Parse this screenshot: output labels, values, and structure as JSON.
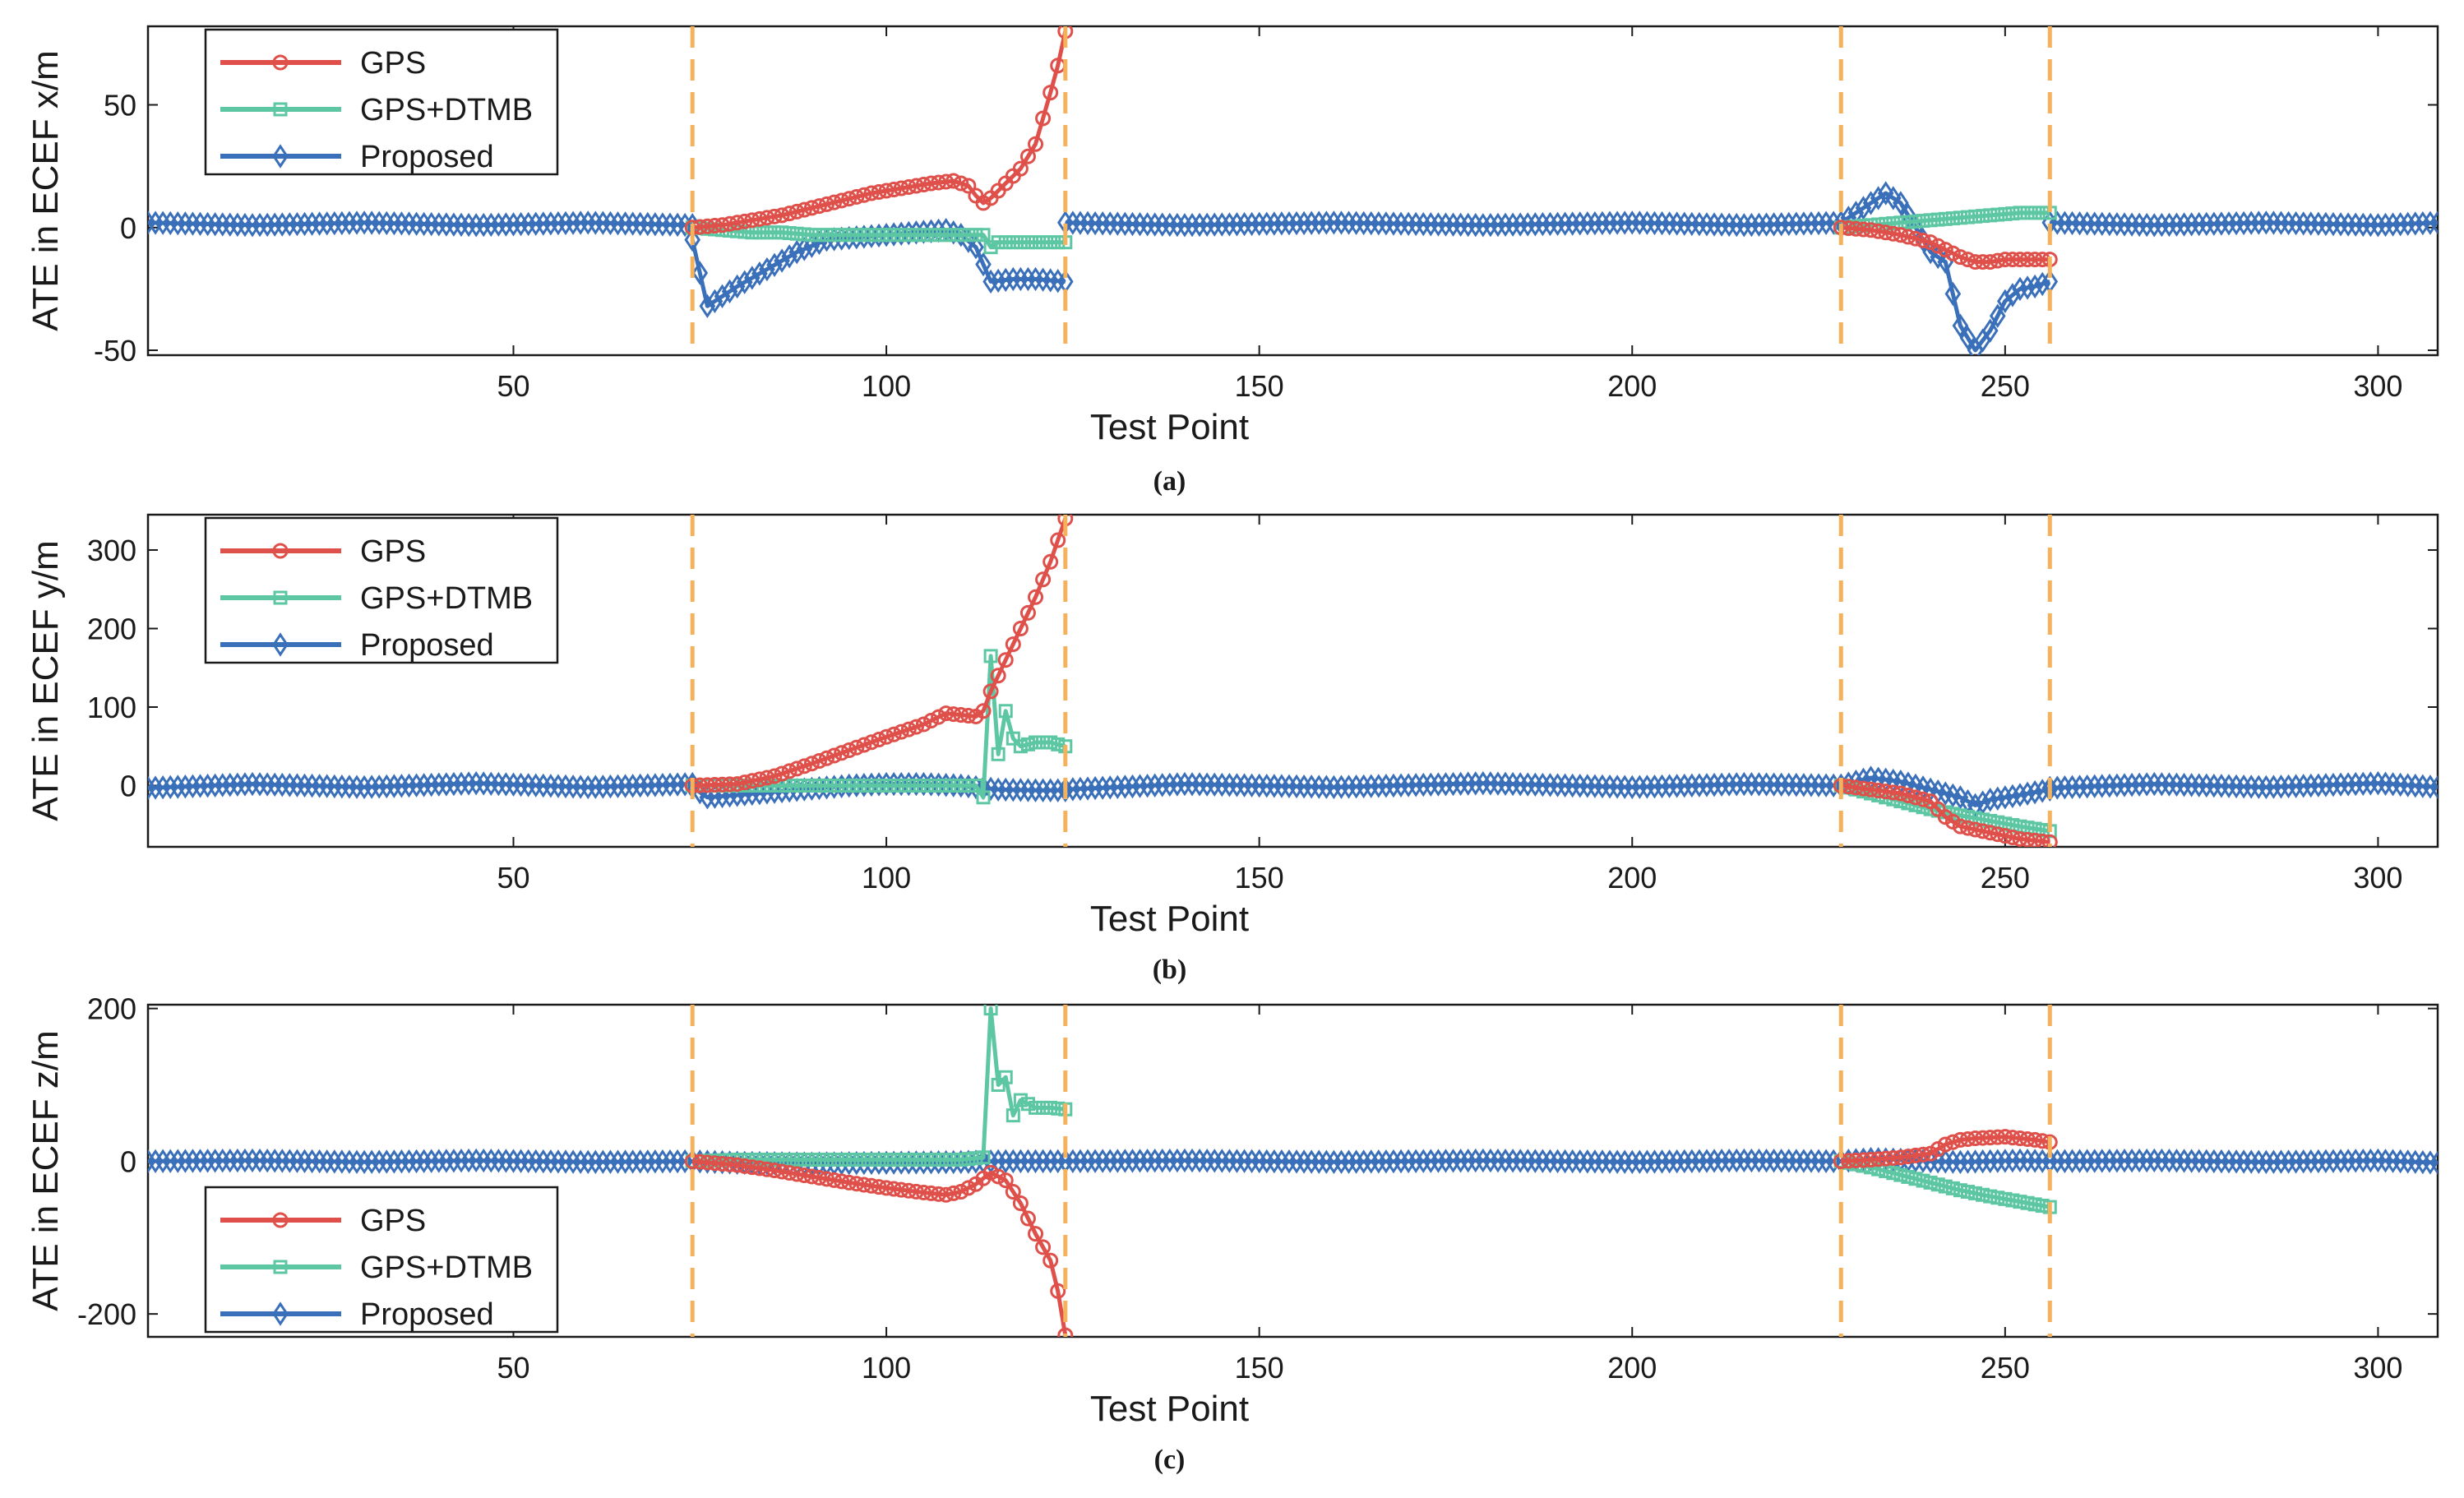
{
  "colors": {
    "gps": "#e0504a",
    "gps_dtmb": "#5cc7a2",
    "proposed": "#3a6fba",
    "outage": "#f5b25c",
    "axis": "#1a1a1a"
  },
  "chart_data": [
    {
      "type": "line",
      "caption": "(a)",
      "xlabel": "Test Point",
      "ylabel": "ATE in ECEF x/m",
      "xlim": [
        1,
        308
      ],
      "ylim": [
        -52,
        82
      ],
      "xticks": [
        50,
        100,
        150,
        200,
        250,
        300
      ],
      "yticks": [
        -50,
        0,
        50
      ],
      "legend": {
        "position": "top-left",
        "entries": [
          "GPS",
          "GPS+DTMB",
          "Proposed"
        ]
      },
      "outages": [
        74,
        124,
        228,
        256
      ],
      "series": [
        {
          "name": "GPS",
          "key": "gps",
          "marker": "circle",
          "segments": [
            {
              "x": [
                74,
                78,
                82,
                86,
                90,
                94,
                98,
                102,
                106,
                109,
                111,
                112,
                113,
                114,
                116,
                118,
                120,
                122,
                123,
                124
              ],
              "y": [
                0,
                1,
                3,
                5,
                8,
                11,
                14,
                16,
                18,
                19,
                17,
                13,
                10,
                12,
                18,
                24,
                34,
                55,
                66,
                80
              ]
            },
            {
              "x": [
                228,
                232,
                236,
                240,
                242,
                244,
                246,
                248,
                250,
                252,
                254,
                256
              ],
              "y": [
                0,
                -1,
                -3,
                -6,
                -9,
                -12,
                -14,
                -14,
                -13,
                -13,
                -13,
                -13
              ]
            }
          ]
        },
        {
          "name": "GPS+DTMB",
          "key": "gps_dtmb",
          "marker": "square",
          "segments": [
            {
              "x": [
                74,
                78,
                82,
                86,
                90,
                94,
                98,
                102,
                106,
                110,
                113,
                114,
                115,
                117,
                120,
                124
              ],
              "y": [
                0,
                -1,
                -2,
                -2,
                -3,
                -3,
                -3,
                -3,
                -3,
                -3,
                -3,
                -8,
                -6,
                -6,
                -6,
                -6
              ]
            },
            {
              "x": [
                228,
                232,
                236,
                240,
                244,
                248,
                252,
                256
              ],
              "y": [
                0,
                1,
                2,
                3,
                4,
                5,
                6,
                6
              ]
            }
          ]
        },
        {
          "name": "Proposed",
          "key": "proposed",
          "marker": "diamond",
          "segments": [
            {
              "x": [
                1,
                15,
                30,
                45,
                60,
                74
              ],
              "y": [
                2,
                1,
                2,
                1,
                2,
                1
              ]
            },
            {
              "x": [
                74,
                76,
                80,
                84,
                88,
                92,
                96,
                100,
                104,
                108,
                110,
                112,
                114,
                117,
                120,
                124
              ],
              "y": [
                -5,
                -32,
                -24,
                -17,
                -10,
                -5,
                -4,
                -3,
                -2,
                -1,
                -3,
                -8,
                -22,
                -21,
                -21,
                -22
              ]
            },
            {
              "x": [
                124,
                140,
                160,
                180,
                200,
                215,
                228
              ],
              "y": [
                2,
                1,
                2,
                1,
                2,
                1,
                2
              ]
            },
            {
              "x": [
                228,
                231,
                234,
                236,
                238,
                240,
                242,
                244,
                246,
                248,
                250,
                252,
                254,
                256
              ],
              "y": [
                2,
                8,
                14,
                10,
                0,
                -10,
                -14,
                -40,
                -50,
                -42,
                -30,
                -25,
                -24,
                -22
              ]
            },
            {
              "x": [
                256,
                270,
                285,
                300,
                308
              ],
              "y": [
                2,
                1,
                2,
                1,
                2
              ]
            }
          ]
        }
      ]
    },
    {
      "type": "line",
      "caption": "(b)",
      "xlabel": "Test Point",
      "ylabel": "ATE in ECEF y/m",
      "xlim": [
        1,
        308
      ],
      "ylim": [
        -78,
        345
      ],
      "xticks": [
        50,
        100,
        150,
        200,
        250,
        300
      ],
      "yticks": [
        0,
        100,
        200,
        300
      ],
      "legend": {
        "position": "top-left",
        "entries": [
          "GPS",
          "GPS+DTMB",
          "Proposed"
        ]
      },
      "outages": [
        74,
        124,
        228,
        256
      ],
      "series": [
        {
          "name": "GPS",
          "key": "gps",
          "marker": "circle",
          "segments": [
            {
              "x": [
                74,
                80,
                85,
                90,
                95,
                100,
                105,
                108,
                110,
                112,
                113,
                114,
                116,
                118,
                120,
                122,
                124
              ],
              "y": [
                0,
                2,
                12,
                28,
                45,
                62,
                78,
                92,
                90,
                88,
                95,
                120,
                160,
                200,
                240,
                285,
                340
              ]
            },
            {
              "x": [
                228,
                232,
                236,
                240,
                242,
                244,
                246,
                248,
                250,
                252,
                254,
                256
              ],
              "y": [
                0,
                -5,
                -10,
                -20,
                -40,
                -52,
                -56,
                -60,
                -64,
                -68,
                -70,
                -72
              ]
            }
          ]
        },
        {
          "name": "GPS+DTMB",
          "key": "gps_dtmb",
          "marker": "square",
          "segments": [
            {
              "x": [
                74,
                80,
                90,
                100,
                110,
                112,
                113,
                114,
                115,
                116,
                117,
                118,
                120,
                122,
                124
              ],
              "y": [
                0,
                0,
                0,
                0,
                0,
                0,
                -15,
                165,
                40,
                95,
                60,
                50,
                55,
                55,
                50
              ]
            },
            {
              "x": [
                228,
                232,
                236,
                240,
                244,
                248,
                252,
                256
              ],
              "y": [
                0,
                -10,
                -20,
                -30,
                -38,
                -45,
                -52,
                -58
              ]
            }
          ]
        },
        {
          "name": "Proposed",
          "key": "proposed",
          "marker": "diamond",
          "segments": [
            {
              "x": [
                1,
                15,
                30,
                45,
                60,
                74
              ],
              "y": [
                -3,
                2,
                -2,
                3,
                -2,
                2
              ]
            },
            {
              "x": [
                74,
                76,
                80,
                85,
                90,
                95,
                100,
                105,
                110,
                115,
                120,
                124
              ],
              "y": [
                -2,
                -15,
                -12,
                -8,
                -4,
                0,
                2,
                2,
                0,
                -5,
                -6,
                -6
              ]
            },
            {
              "x": [
                124,
                140,
                160,
                180,
                200,
                215,
                228
              ],
              "y": [
                -5,
                2,
                -2,
                3,
                -2,
                2,
                0
              ]
            },
            {
              "x": [
                228,
                232,
                236,
                240,
                244,
                246,
                248,
                252,
                256
              ],
              "y": [
                0,
                10,
                5,
                -5,
                -15,
                -25,
                -18,
                -12,
                -5
              ]
            },
            {
              "x": [
                256,
                270,
                285,
                300,
                308
              ],
              "y": [
                -3,
                2,
                -2,
                3,
                -2
              ]
            }
          ]
        }
      ]
    },
    {
      "type": "line",
      "caption": "(c)",
      "xlabel": "Test Point",
      "ylabel": "ATE in ECEF z/m",
      "xlim": [
        1,
        308
      ],
      "ylim": [
        -230,
        205
      ],
      "xticks": [
        50,
        100,
        150,
        200,
        250,
        300
      ],
      "yticks": [
        -200,
        0,
        200
      ],
      "legend": {
        "position": "bottom-left",
        "entries": [
          "GPS",
          "GPS+DTMB",
          "Proposed"
        ]
      },
      "outages": [
        74,
        124,
        228,
        256
      ],
      "series": [
        {
          "name": "GPS",
          "key": "gps",
          "marker": "circle",
          "segments": [
            {
              "x": [
                74,
                80,
                85,
                90,
                95,
                100,
                105,
                108,
                110,
                112,
                114,
                116,
                118,
                120,
                122,
                123,
                124
              ],
              "y": [
                0,
                -5,
                -12,
                -20,
                -28,
                -35,
                -41,
                -44,
                -40,
                -30,
                -15,
                -25,
                -55,
                -95,
                -130,
                -170,
                -228
              ]
            },
            {
              "x": [
                228,
                232,
                236,
                240,
                242,
                244,
                246,
                248,
                250,
                252,
                254,
                256
              ],
              "y": [
                0,
                2,
                5,
                10,
                22,
                28,
                30,
                31,
                32,
                30,
                28,
                25
              ]
            }
          ]
        },
        {
          "name": "GPS+DTMB",
          "key": "gps_dtmb",
          "marker": "square",
          "segments": [
            {
              "x": [
                74,
                80,
                90,
                100,
                110,
                113,
                114,
                115,
                116,
                117,
                118,
                120,
                122,
                124
              ],
              "y": [
                0,
                2,
                2,
                2,
                2,
                5,
                200,
                100,
                110,
                60,
                80,
                70,
                70,
                68
              ]
            },
            {
              "x": [
                228,
                232,
                236,
                240,
                244,
                248,
                252,
                256
              ],
              "y": [
                0,
                -8,
                -18,
                -28,
                -38,
                -46,
                -53,
                -60
              ]
            }
          ]
        },
        {
          "name": "Proposed",
          "key": "proposed",
          "marker": "diamond",
          "segments": [
            {
              "x": [
                1,
                15,
                30,
                45,
                60,
                74
              ],
              "y": [
                0,
                1,
                -1,
                1,
                -1,
                0
              ]
            },
            {
              "x": [
                74,
                80,
                90,
                100,
                110,
                115,
                120,
                124
              ],
              "y": [
                0,
                -2,
                -3,
                -2,
                -1,
                0,
                0,
                0
              ]
            },
            {
              "x": [
                124,
                140,
                160,
                180,
                200,
                215,
                228
              ],
              "y": [
                0,
                1,
                -1,
                1,
                -1,
                1,
                0
              ]
            },
            {
              "x": [
                228,
                232,
                236,
                240,
                244,
                248,
                252,
                256
              ],
              "y": [
                0,
                3,
                2,
                0,
                -1,
                0,
                1,
                0
              ]
            },
            {
              "x": [
                256,
                270,
                285,
                300,
                308
              ],
              "y": [
                0,
                1,
                -1,
                1,
                -2
              ]
            }
          ]
        }
      ]
    }
  ]
}
